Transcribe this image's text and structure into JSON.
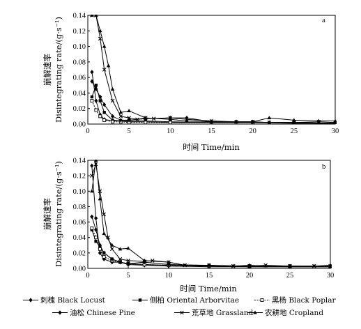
{
  "legend": [
    {
      "label": "刺槐 Black Locust",
      "marker": "diamond",
      "dash": "solid"
    },
    {
      "label": "侧柏 Oriental Arborvitae",
      "marker": "square",
      "dash": "solid"
    },
    {
      "label": "黑杨 Black Poplar",
      "marker": "square-open",
      "dash": "dotted"
    },
    {
      "label": "油松 Chinese Pine",
      "marker": "diamond",
      "dash": "solid"
    },
    {
      "label": "荒草地 Grassland",
      "marker": "cross",
      "dash": "solid"
    },
    {
      "label": "农耕地 Cropland",
      "marker": "triangle",
      "dash": "solid"
    }
  ],
  "chart_data": [
    {
      "type": "line",
      "panel_label": "a",
      "xlabel": "时间 Time/min",
      "ylabel_cn": "崩解速率",
      "ylabel_en": "Disintegrating rate/(g·s⁻¹)",
      "xlim": [
        0,
        30
      ],
      "ylim": [
        0,
        0.14
      ],
      "xticks": [
        "0",
        "5",
        "10",
        "15",
        "20",
        "25",
        "30"
      ],
      "yticks": [
        "0.00",
        "0.02",
        "0.04",
        "0.06",
        "0.08",
        "0.10",
        "0.12",
        "0.14"
      ],
      "series": [
        {
          "name": "刺槐 Black Locust",
          "x": [
            0.5,
            1,
            1.5,
            2,
            3,
            4,
            5,
            7,
            10,
            15,
            20,
            25,
            30
          ],
          "y": [
            0.067,
            0.03,
            0.012,
            0.006,
            0.004,
            0.004,
            0.003,
            0.003,
            0.002,
            0.002,
            0.002,
            0.001,
            0.001
          ]
        },
        {
          "name": "侧柏 Oriental Arborvitae",
          "x": [
            0.5,
            1,
            1.5,
            2,
            3,
            4,
            5,
            7,
            10,
            15,
            20,
            25,
            30
          ],
          "y": [
            0.035,
            0.05,
            0.03,
            0.015,
            0.005,
            0.004,
            0.004,
            0.004,
            0.003,
            0.002,
            0.002,
            0.002,
            0.001
          ]
        },
        {
          "name": "黑杨 Black Poplar",
          "x": [
            0.5,
            1,
            1.5,
            2,
            3,
            4,
            5,
            7,
            10,
            15,
            20,
            25,
            30
          ],
          "y": [
            0.03,
            0.018,
            0.01,
            0.005,
            0.003,
            0.003,
            0.002,
            0.002,
            0.002,
            0.002,
            0.002,
            0.002,
            0.001
          ]
        },
        {
          "name": "油松 Chinese Pine",
          "x": [
            0.5,
            1,
            1.5,
            2,
            3,
            4,
            5,
            7,
            10,
            12,
            15,
            18,
            20,
            22,
            25,
            28,
            30
          ],
          "y": [
            0.055,
            0.045,
            0.035,
            0.025,
            0.01,
            0.005,
            0.005,
            0.007,
            0.008,
            0.008,
            0.003,
            0.003,
            0.003,
            0.002,
            0.002,
            0.001,
            0.001
          ]
        },
        {
          "name": "荒草地 Grassland",
          "x": [
            0.5,
            1,
            1.5,
            2,
            3,
            4,
            5,
            6,
            7,
            8,
            10,
            12,
            15,
            18,
            20,
            22,
            25,
            28,
            30
          ],
          "y": [
            0.14,
            0.14,
            0.11,
            0.07,
            0.03,
            0.01,
            0.008,
            0.006,
            0.008,
            0.007,
            0.008,
            0.006,
            0.004,
            0.003,
            0.003,
            0.002,
            0.002,
            0.003,
            0.002
          ]
        },
        {
          "name": "农耕地 Cropland",
          "x": [
            0.5,
            1,
            1.5,
            2,
            2.5,
            3,
            4,
            5,
            7,
            10,
            12,
            15,
            18,
            20,
            22,
            25,
            28,
            30
          ],
          "y": [
            0.14,
            0.14,
            0.12,
            0.1,
            0.075,
            0.045,
            0.015,
            0.017,
            0.008,
            0.006,
            0.004,
            0.003,
            0.003,
            0.003,
            0.008,
            0.005,
            0.004,
            0.004
          ]
        }
      ]
    },
    {
      "type": "line",
      "panel_label": "b",
      "xlabel": "时间 Time/min",
      "ylabel_cn": "崩解速率",
      "ylabel_en": "Disintegrating rate/(g·s⁻¹)",
      "xlim": [
        0,
        30
      ],
      "ylim": [
        0,
        0.14
      ],
      "xticks": [
        "0",
        "5",
        "10",
        "15",
        "20",
        "25",
        "30"
      ],
      "yticks": [
        "0.00",
        "0.02",
        "0.04",
        "0.06",
        "0.08",
        "0.10",
        "0.12",
        "0.14"
      ],
      "series": [
        {
          "name": "刺槐 Black Locust",
          "x": [
            0.5,
            1,
            1.5,
            2,
            3,
            4,
            5,
            7,
            10,
            15,
            20,
            25,
            30
          ],
          "y": [
            0.133,
            0.065,
            0.02,
            0.012,
            0.008,
            0.008,
            0.005,
            0.004,
            0.003,
            0.002,
            0.002,
            0.002,
            0.002
          ]
        },
        {
          "name": "侧柏 Oriental Arborvitae",
          "x": [
            0.5,
            1,
            1.5,
            2,
            3,
            4,
            5,
            7,
            10,
            15,
            20,
            25,
            30
          ],
          "y": [
            0.05,
            0.035,
            0.028,
            0.02,
            0.012,
            0.008,
            0.006,
            0.005,
            0.004,
            0.003,
            0.002,
            0.002,
            0.002
          ]
        },
        {
          "name": "黑杨 Black Poplar",
          "x": [
            0.5,
            1,
            1.5,
            2,
            3,
            4,
            5,
            7,
            10,
            15,
            20,
            25,
            30
          ],
          "y": [
            0.052,
            0.04,
            0.025,
            0.015,
            0.01,
            0.008,
            0.006,
            0.005,
            0.004,
            0.003,
            0.003,
            0.003,
            0.002
          ]
        },
        {
          "name": "油松 Chinese Pine",
          "x": [
            0.5,
            1,
            1.5,
            2,
            3,
            4,
            5,
            7,
            10,
            15,
            20,
            25,
            30
          ],
          "y": [
            0.067,
            0.05,
            0.03,
            0.02,
            0.012,
            0.008,
            0.006,
            0.008,
            0.005,
            0.004,
            0.003,
            0.002,
            0.002
          ]
        },
        {
          "name": "荒草地 Grassland",
          "x": [
            0.5,
            1,
            1.5,
            2,
            2.5,
            3,
            4,
            5,
            7,
            8,
            10,
            12,
            15,
            18,
            20,
            22,
            25,
            28,
            30
          ],
          "y": [
            0.12,
            0.135,
            0.1,
            0.07,
            0.04,
            0.025,
            0.012,
            0.01,
            0.009,
            0.01,
            0.008,
            0.004,
            0.004,
            0.003,
            0.003,
            0.004,
            0.003,
            0.003,
            0.003
          ]
        },
        {
          "name": "农耕地 Cropland",
          "x": [
            0.5,
            1,
            1.5,
            2,
            3,
            4,
            5,
            7,
            10,
            12,
            15,
            18,
            20,
            22,
            25,
            28,
            30
          ],
          "y": [
            0.1,
            0.14,
            0.09,
            0.045,
            0.03,
            0.025,
            0.026,
            0.01,
            0.008,
            0.004,
            0.004,
            0.003,
            0.004,
            0.003,
            0.003,
            0.003,
            0.004
          ]
        }
      ]
    }
  ]
}
